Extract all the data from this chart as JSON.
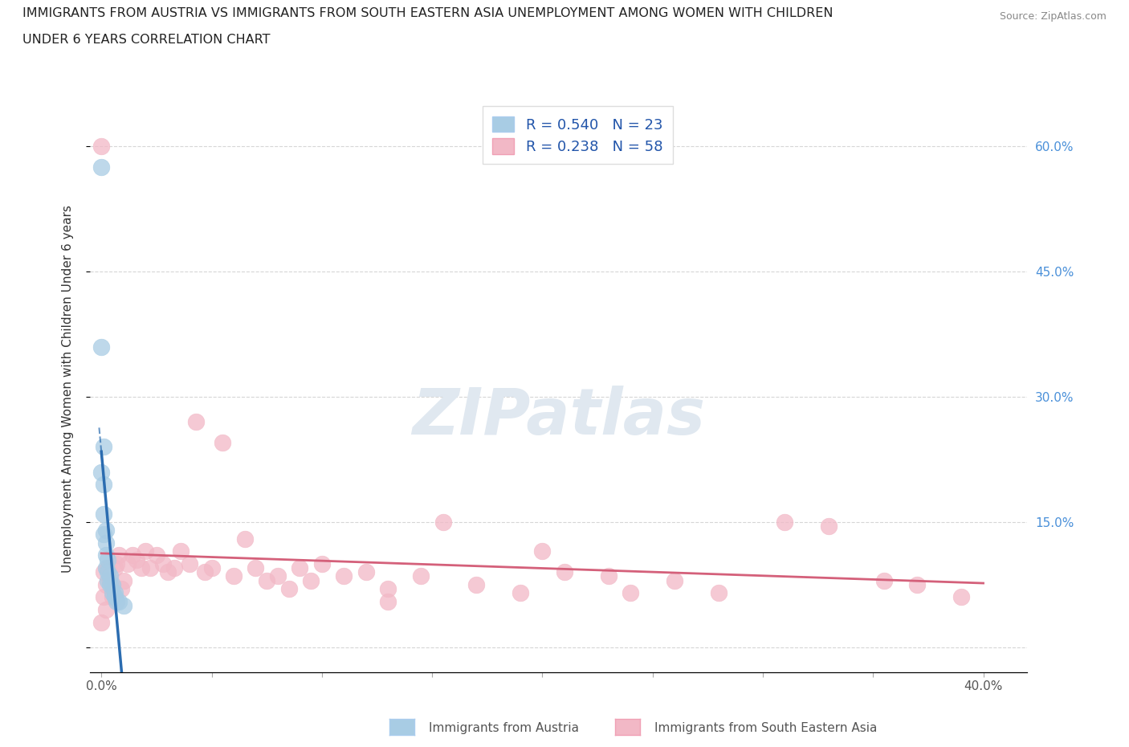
{
  "title_line1": "IMMIGRANTS FROM AUSTRIA VS IMMIGRANTS FROM SOUTH EASTERN ASIA UNEMPLOYMENT AMONG WOMEN WITH CHILDREN",
  "title_line2": "UNDER 6 YEARS CORRELATION CHART",
  "source": "Source: ZipAtlas.com",
  "xlabel_austria": "Immigrants from Austria",
  "xlabel_sea": "Immigrants from South Eastern Asia",
  "ylabel": "Unemployment Among Women with Children Under 6 years",
  "xlim": [
    -0.005,
    0.42
  ],
  "ylim": [
    -0.03,
    0.65
  ],
  "austria_R": 0.54,
  "austria_N": 23,
  "sea_R": 0.238,
  "sea_N": 58,
  "austria_color": "#a8cce4",
  "sea_color": "#f2b8c6",
  "austria_line_color": "#2b6cb0",
  "sea_line_color": "#d4607a",
  "right_axis_color": "#4a90d9",
  "watermark_color": "#e0e8f0",
  "austria_x": [
    0.0,
    0.0,
    0.0,
    0.001,
    0.001,
    0.001,
    0.001,
    0.002,
    0.002,
    0.002,
    0.002,
    0.003,
    0.003,
    0.003,
    0.004,
    0.004,
    0.005,
    0.005,
    0.006,
    0.006,
    0.007,
    0.008,
    0.01
  ],
  "austria_y": [
    0.575,
    0.36,
    0.21,
    0.24,
    0.195,
    0.16,
    0.135,
    0.14,
    0.125,
    0.11,
    0.095,
    0.105,
    0.09,
    0.08,
    0.085,
    0.075,
    0.075,
    0.065,
    0.065,
    0.06,
    0.055,
    0.055,
    0.05
  ],
  "sea_x": [
    0.0,
    0.0,
    0.001,
    0.001,
    0.002,
    0.002,
    0.003,
    0.004,
    0.005,
    0.006,
    0.007,
    0.008,
    0.009,
    0.01,
    0.012,
    0.014,
    0.016,
    0.018,
    0.02,
    0.022,
    0.025,
    0.028,
    0.03,
    0.033,
    0.036,
    0.04,
    0.043,
    0.047,
    0.05,
    0.055,
    0.06,
    0.065,
    0.07,
    0.075,
    0.08,
    0.085,
    0.09,
    0.095,
    0.1,
    0.11,
    0.12,
    0.13,
    0.145,
    0.155,
    0.17,
    0.19,
    0.21,
    0.23,
    0.26,
    0.28,
    0.31,
    0.33,
    0.355,
    0.37,
    0.39,
    0.2,
    0.24,
    0.13
  ],
  "sea_y": [
    0.6,
    0.03,
    0.09,
    0.06,
    0.075,
    0.045,
    0.095,
    0.08,
    0.06,
    0.095,
    0.1,
    0.11,
    0.07,
    0.08,
    0.1,
    0.11,
    0.105,
    0.095,
    0.115,
    0.095,
    0.11,
    0.1,
    0.09,
    0.095,
    0.115,
    0.1,
    0.27,
    0.09,
    0.095,
    0.245,
    0.085,
    0.13,
    0.095,
    0.08,
    0.085,
    0.07,
    0.095,
    0.08,
    0.1,
    0.085,
    0.09,
    0.07,
    0.085,
    0.15,
    0.075,
    0.065,
    0.09,
    0.085,
    0.08,
    0.065,
    0.15,
    0.145,
    0.08,
    0.075,
    0.06,
    0.115,
    0.065,
    0.055
  ]
}
